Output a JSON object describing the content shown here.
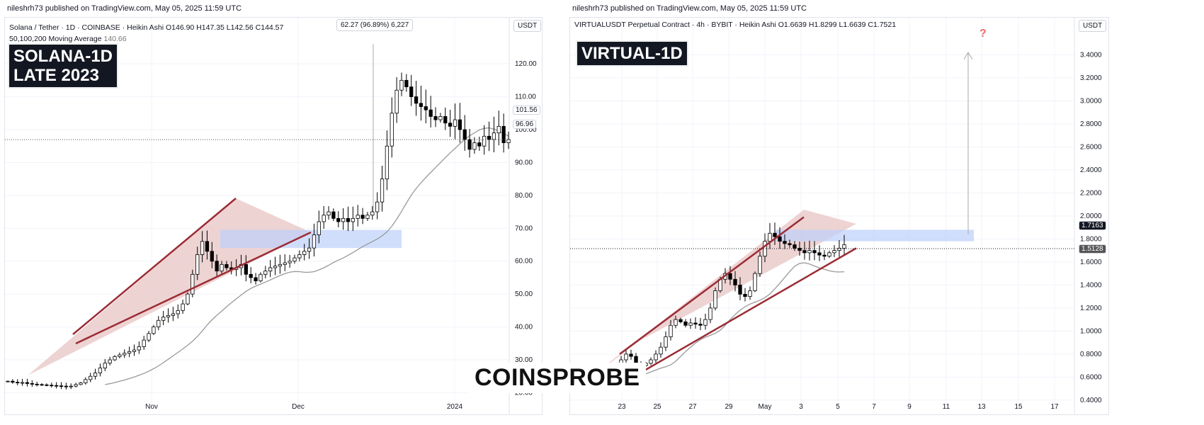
{
  "left": {
    "publisher": "nileshrh73 published on TradingView.com, May 05, 2025 11:59 UTC",
    "symbol_line": "Solana / Tether · 1D · COINBASE · Heikin Ashi  O146.90  H147.35  L142.56  C144.57",
    "ma_label": "50,100,200 Moving Average",
    "ma_value": "140.66",
    "currency": "USDT",
    "tag_line1": "SOLANA-1D",
    "tag_line2": "LATE 2023",
    "measure": "62.27 (96.89%) 6,227",
    "price_tag_ma": "101.56",
    "price_tag_last": "96.96"
  },
  "right": {
    "publisher": "nileshrh73 published on TradingView.com, May 05, 2025 11:59 UTC",
    "symbol_line": "VIRTUALUSDT Perpetual Contract · 4h · BYBIT · Heikin Ashi  O1.6639  H1.8299  L1.6639  C1.7521",
    "currency": "USDT",
    "tag": "VIRTUAL-1D",
    "question": "?",
    "price_tag_last": "1.7163",
    "price_tag_ma": "1.5128"
  },
  "brand": "COINSPROBE",
  "colors": {
    "pattern": "#9b2c35",
    "fill": "#e8c4c4",
    "zone": "#bcd0fb",
    "ma": "#999999",
    "candle": "#000000"
  },
  "chart_data": [
    {
      "type": "candlestick",
      "title": "Solana / Tether 1D Heikin Ashi",
      "ylim": [
        16,
        128
      ],
      "yticks": [
        "120.00",
        "110.00",
        "100.00",
        "90.00",
        "80.00",
        "70.00",
        "60.00",
        "50.00",
        "40.00",
        "30.00",
        "20.00"
      ],
      "xticks": [
        "Nov",
        "Dec",
        "2024"
      ],
      "close": [
        23.5,
        23.2,
        23,
        23.1,
        22.8,
        22.6,
        22.5,
        22.4,
        22.3,
        22.2,
        22.1,
        22,
        21.8,
        22,
        22.5,
        23,
        24,
        25,
        26,
        27.5,
        29,
        30,
        31,
        31.5,
        32,
        32.5,
        33,
        34,
        36,
        38,
        40,
        42,
        43,
        43.5,
        44,
        45,
        47,
        50,
        56,
        62,
        66,
        63,
        60,
        57,
        59,
        58,
        57.5,
        58,
        59,
        56,
        55,
        54,
        56,
        57,
        58,
        58.5,
        59,
        59.5,
        60,
        61,
        62,
        63,
        64,
        68,
        72,
        74,
        75,
        73,
        72,
        73,
        72,
        73,
        74,
        73,
        74,
        75,
        78,
        85,
        95,
        105,
        112,
        115,
        113,
        110,
        108,
        107,
        106,
        104,
        103,
        104,
        102,
        101,
        103,
        100,
        97,
        94,
        96,
        95,
        98,
        97,
        99,
        101,
        96,
        97
      ]
    },
    {
      "type": "candlestick",
      "title": "VIRTUALUSDT 4h Heikin Ashi",
      "ylim": [
        0.35,
        3.55
      ],
      "yticks": [
        "3.4000",
        "3.2000",
        "3.0000",
        "2.8000",
        "2.6000",
        "2.4000",
        "2.2000",
        "2.0000",
        "1.8000",
        "1.6000",
        "1.4000",
        "1.2000",
        "1.0000",
        "0.8000",
        "0.6000",
        "0.4000"
      ],
      "xticks": [
        "23",
        "25",
        "27",
        "29",
        "May",
        "3",
        "5",
        "7",
        "9",
        "11",
        "13",
        "15",
        "17"
      ],
      "close": [
        0.56,
        0.56,
        0.57,
        0.56,
        0.57,
        0.58,
        0.57,
        0.58,
        0.6,
        0.66,
        0.75,
        0.8,
        0.78,
        0.72,
        0.7,
        0.72,
        0.75,
        0.8,
        0.86,
        0.95,
        1.05,
        1.1,
        1.08,
        1.05,
        1.07,
        1.06,
        1.05,
        1.1,
        1.2,
        1.35,
        1.45,
        1.5,
        1.45,
        1.4,
        1.32,
        1.3,
        1.35,
        1.5,
        1.65,
        1.78,
        1.85,
        1.82,
        1.78,
        1.76,
        1.75,
        1.72,
        1.7,
        1.68,
        1.7,
        1.68,
        1.66,
        1.65,
        1.68,
        1.7,
        1.72,
        1.75
      ]
    }
  ]
}
